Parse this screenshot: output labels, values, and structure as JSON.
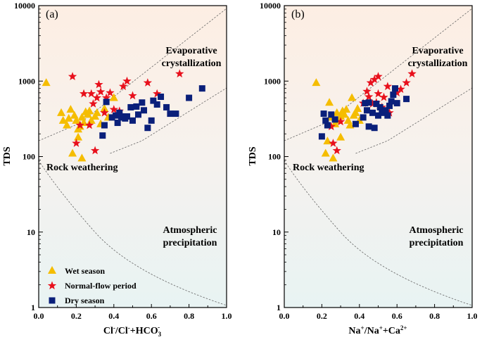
{
  "chart_data": [
    {
      "type": "scatter",
      "panel_label": "(a)",
      "ylabel": "TDS",
      "xlabel_parts": {
        "a": "Cl",
        "a_sup": "-",
        "b": "/Cl",
        "b_sup": "-",
        "c": "+HCO",
        "c_sub": "3",
        "c_sup": "-"
      },
      "xlim": [
        0.0,
        1.0
      ],
      "ylim": [
        1,
        10000
      ],
      "yscale": "log",
      "x_ticks": [
        "0.0",
        "0.2",
        "0.4",
        "0.6",
        "0.8",
        "1.0"
      ],
      "y_ticks": [
        "1",
        "10",
        "100",
        "1000",
        "10000"
      ],
      "regions": {
        "evaporative": [
          "Evaporative",
          "crystallization"
        ],
        "rock": "Rock weathering",
        "atmospheric": [
          "Atmospheric",
          "precipitation"
        ]
      },
      "series": [
        {
          "name": "Wet season",
          "marker": "triangle",
          "color": "#F5BD00",
          "points": [
            [
              0.04,
              950
            ],
            [
              0.12,
              380
            ],
            [
              0.13,
              300
            ],
            [
              0.15,
              260
            ],
            [
              0.16,
              320
            ],
            [
              0.17,
              420
            ],
            [
              0.18,
              110
            ],
            [
              0.19,
              350
            ],
            [
              0.2,
              300
            ],
            [
              0.21,
              180
            ],
            [
              0.21,
              230
            ],
            [
              0.22,
              250
            ],
            [
              0.23,
              95
            ],
            [
              0.23,
              330
            ],
            [
              0.24,
              280
            ],
            [
              0.25,
              390
            ],
            [
              0.26,
              360
            ],
            [
              0.27,
              400
            ],
            [
              0.28,
              300
            ],
            [
              0.3,
              340
            ],
            [
              0.31,
              380
            ],
            [
              0.33,
              270
            ],
            [
              0.35,
              430
            ],
            [
              0.37,
              330
            ],
            [
              0.4,
              600
            ]
          ]
        },
        {
          "name": "Normal-flow period",
          "marker": "star",
          "color": "#E8101C",
          "points": [
            [
              0.18,
              1150
            ],
            [
              0.2,
              150
            ],
            [
              0.22,
              260
            ],
            [
              0.24,
              680
            ],
            [
              0.27,
              260
            ],
            [
              0.28,
              680
            ],
            [
              0.29,
              500
            ],
            [
              0.3,
              120
            ],
            [
              0.31,
              600
            ],
            [
              0.32,
              900
            ],
            [
              0.33,
              720
            ],
            [
              0.35,
              380
            ],
            [
              0.36,
              600
            ],
            [
              0.38,
              700
            ],
            [
              0.4,
              420
            ],
            [
              0.43,
              400
            ],
            [
              0.45,
              850
            ],
            [
              0.47,
              1000
            ],
            [
              0.5,
              640
            ],
            [
              0.58,
              950
            ],
            [
              0.63,
              680
            ],
            [
              0.75,
              1250
            ]
          ]
        },
        {
          "name": "Dry season",
          "marker": "square",
          "color": "#0A1F7A",
          "points": [
            [
              0.34,
              190
            ],
            [
              0.35,
              260
            ],
            [
              0.36,
              530
            ],
            [
              0.39,
              330
            ],
            [
              0.41,
              350
            ],
            [
              0.42,
              280
            ],
            [
              0.43,
              380
            ],
            [
              0.44,
              340
            ],
            [
              0.45,
              330
            ],
            [
              0.46,
              320
            ],
            [
              0.47,
              340
            ],
            [
              0.49,
              450
            ],
            [
              0.5,
              300
            ],
            [
              0.52,
              460
            ],
            [
              0.53,
              360
            ],
            [
              0.55,
              520
            ],
            [
              0.56,
              410
            ],
            [
              0.58,
              240
            ],
            [
              0.6,
              300
            ],
            [
              0.61,
              550
            ],
            [
              0.63,
              490
            ],
            [
              0.65,
              620
            ],
            [
              0.68,
              450
            ],
            [
              0.7,
              370
            ],
            [
              0.73,
              370
            ],
            [
              0.8,
              600
            ],
            [
              0.87,
              800
            ]
          ]
        }
      ]
    },
    {
      "type": "scatter",
      "panel_label": "(b)",
      "ylabel": "TDS",
      "xlabel_parts": {
        "a": "Na",
        "a_sup": "+",
        "b": "/Na",
        "b_sup": "+",
        "c": "+Ca",
        "c_sub": "",
        "c_sup": "2+"
      },
      "xlim": [
        0.0,
        1.0
      ],
      "ylim": [
        1,
        10000
      ],
      "yscale": "log",
      "x_ticks": [
        "0.0",
        "0.2",
        "0.4",
        "0.6",
        "0.8",
        "1.0"
      ],
      "y_ticks": [
        "1",
        "10",
        "100",
        "1000",
        "10000"
      ],
      "regions": {
        "evaporative": [
          "Evaporative",
          "crystallization"
        ],
        "rock": "Rock weathering",
        "atmospheric": [
          "Atmospheric",
          "precipitation"
        ]
      },
      "series": [
        {
          "name": "Wet season",
          "marker": "triangle",
          "color": "#F5BD00",
          "points": [
            [
              0.17,
              950
            ],
            [
              0.22,
              110
            ],
            [
              0.23,
              160
            ],
            [
              0.24,
              520
            ],
            [
              0.25,
              330
            ],
            [
              0.26,
              95
            ],
            [
              0.27,
              270
            ],
            [
              0.28,
              380
            ],
            [
              0.29,
              300
            ],
            [
              0.3,
              340
            ],
            [
              0.3,
              180
            ],
            [
              0.31,
              400
            ],
            [
              0.32,
              360
            ],
            [
              0.33,
              420
            ],
            [
              0.34,
              300
            ],
            [
              0.35,
              260
            ],
            [
              0.36,
              600
            ],
            [
              0.37,
              350
            ],
            [
              0.38,
              380
            ],
            [
              0.39,
              430
            ],
            [
              0.4,
              300
            ]
          ]
        },
        {
          "name": "Normal-flow period",
          "marker": "star",
          "color": "#E8101C",
          "points": [
            [
              0.25,
              250
            ],
            [
              0.26,
              150
            ],
            [
              0.28,
              120
            ],
            [
              0.3,
              290
            ],
            [
              0.42,
              510
            ],
            [
              0.44,
              730
            ],
            [
              0.45,
              620
            ],
            [
              0.46,
              950
            ],
            [
              0.47,
              500
            ],
            [
              0.48,
              1050
            ],
            [
              0.49,
              520
            ],
            [
              0.5,
              1150
            ],
            [
              0.5,
              680
            ],
            [
              0.52,
              450
            ],
            [
              0.53,
              610
            ],
            [
              0.55,
              850
            ],
            [
              0.56,
              380
            ],
            [
              0.6,
              700
            ],
            [
              0.62,
              780
            ],
            [
              0.65,
              950
            ],
            [
              0.68,
              1250
            ]
          ]
        },
        {
          "name": "Dry season",
          "marker": "square",
          "color": "#0A1F7A",
          "points": [
            [
              0.2,
              185
            ],
            [
              0.21,
              370
            ],
            [
              0.22,
              300
            ],
            [
              0.23,
              260
            ],
            [
              0.25,
              360
            ],
            [
              0.27,
              310
            ],
            [
              0.38,
              270
            ],
            [
              0.42,
              330
            ],
            [
              0.43,
              510
            ],
            [
              0.44,
              410
            ],
            [
              0.45,
              520
            ],
            [
              0.45,
              250
            ],
            [
              0.47,
              380
            ],
            [
              0.48,
              240
            ],
            [
              0.49,
              500
            ],
            [
              0.5,
              350
            ],
            [
              0.51,
              450
            ],
            [
              0.52,
              380
            ],
            [
              0.53,
              390
            ],
            [
              0.54,
              410
            ],
            [
              0.55,
              350
            ],
            [
              0.56,
              470
            ],
            [
              0.57,
              540
            ],
            [
              0.58,
              660
            ],
            [
              0.59,
              800
            ],
            [
              0.6,
              510
            ],
            [
              0.65,
              580
            ]
          ]
        }
      ]
    }
  ]
}
